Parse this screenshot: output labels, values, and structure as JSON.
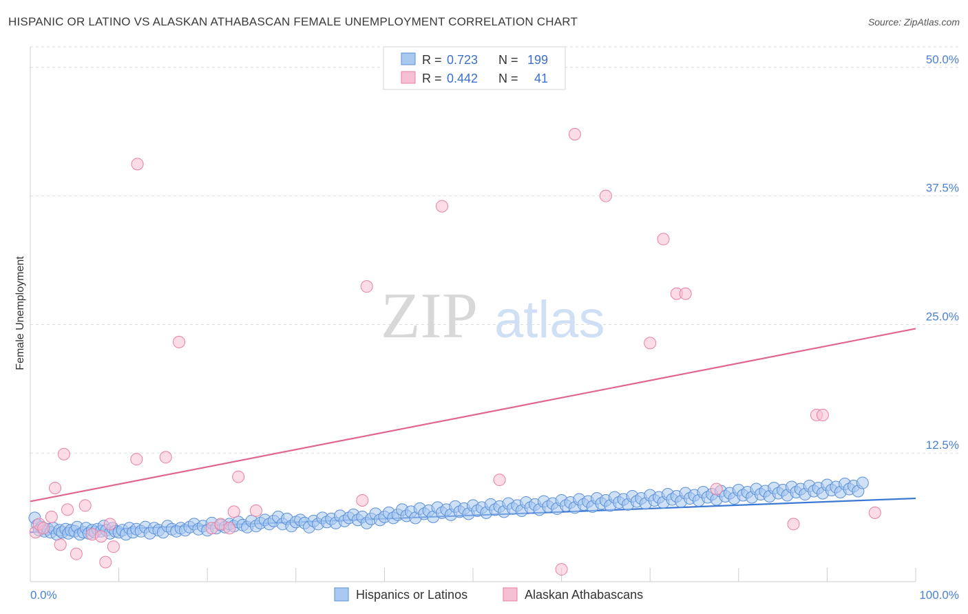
{
  "title": "HISPANIC OR LATINO VS ALASKAN ATHABASCAN FEMALE UNEMPLOYMENT CORRELATION CHART",
  "source": "Source: ZipAtlas.com",
  "watermark": {
    "zip": "ZIP",
    "atlas": "atlas"
  },
  "colors": {
    "blue_fill": "#a8c8f0",
    "blue_stroke": "#5b8fd8",
    "blue_line": "#3a78d4",
    "pink_fill": "#f7bfd3",
    "pink_stroke": "#e77fa3",
    "pink_line": "#e0658f",
    "axis_text": "#4a7fd4",
    "grid": "#dddddd"
  },
  "legend": {
    "series1": {
      "r_label": "R =",
      "r_value": "0.723",
      "n_label": "N =",
      "n_value": "199"
    },
    "series2": {
      "r_label": "R =",
      "r_value": "0.442",
      "n_label": "N =",
      "n_value": "41"
    }
  },
  "chart_data": {
    "type": "scatter",
    "title": "HISPANIC OR LATINO VS ALASKAN ATHABASCAN FEMALE UNEMPLOYMENT CORRELATION CHART",
    "xlabel": "",
    "ylabel": "Female Unemployment",
    "xlim": [
      0,
      100
    ],
    "ylim": [
      0,
      52
    ],
    "x_tick_labels": [
      "0.0%",
      "100.0%"
    ],
    "y_ticks": [
      12.5,
      25.0,
      37.5,
      50.0
    ],
    "y_tick_labels": [
      "12.5%",
      "25.0%",
      "37.5%",
      "50.0%"
    ],
    "grid": true,
    "series": [
      {
        "name": "Hispanics or Latinos",
        "trend": {
          "x": [
            0,
            100
          ],
          "y": [
            4.8,
            8.1
          ]
        },
        "points": [
          [
            0.5,
            6.2
          ],
          [
            0.8,
            5.5
          ],
          [
            1.0,
            5.0
          ],
          [
            1.3,
            5.3
          ],
          [
            1.6,
            4.9
          ],
          [
            2.0,
            5.1
          ],
          [
            2.3,
            4.8
          ],
          [
            2.6,
            5.2
          ],
          [
            3.0,
            4.6
          ],
          [
            3.3,
            5.0
          ],
          [
            3.6,
            4.8
          ],
          [
            4.0,
            5.1
          ],
          [
            4.3,
            4.7
          ],
          [
            4.6,
            5.0
          ],
          [
            5.0,
            4.9
          ],
          [
            5.3,
            5.3
          ],
          [
            5.6,
            4.6
          ],
          [
            6.0,
            4.8
          ],
          [
            6.3,
            5.2
          ],
          [
            6.6,
            4.7
          ],
          [
            7.0,
            5.0
          ],
          [
            7.3,
            4.8
          ],
          [
            7.6,
            5.1
          ],
          [
            8.0,
            4.9
          ],
          [
            8.3,
            5.4
          ],
          [
            8.6,
            5.0
          ],
          [
            9.0,
            4.7
          ],
          [
            9.3,
            5.2
          ],
          [
            9.6,
            4.9
          ],
          [
            10.0,
            4.8
          ],
          [
            10.4,
            5.0
          ],
          [
            10.8,
            4.6
          ],
          [
            11.2,
            5.2
          ],
          [
            11.6,
            4.8
          ],
          [
            12.0,
            5.1
          ],
          [
            12.5,
            4.9
          ],
          [
            13.0,
            5.3
          ],
          [
            13.5,
            4.7
          ],
          [
            14.0,
            5.2
          ],
          [
            14.5,
            5.0
          ],
          [
            15.0,
            4.8
          ],
          [
            15.5,
            5.4
          ],
          [
            16.0,
            5.1
          ],
          [
            16.5,
            4.9
          ],
          [
            17.0,
            5.2
          ],
          [
            17.5,
            5.0
          ],
          [
            18.0,
            5.3
          ],
          [
            18.5,
            5.6
          ],
          [
            19.0,
            5.1
          ],
          [
            19.5,
            5.4
          ],
          [
            20.0,
            5.0
          ],
          [
            20.5,
            5.7
          ],
          [
            21.0,
            5.2
          ],
          [
            21.5,
            5.5
          ],
          [
            22.0,
            5.3
          ],
          [
            22.5,
            5.6
          ],
          [
            23.0,
            5.4
          ],
          [
            23.5,
            5.8
          ],
          [
            24.0,
            5.5
          ],
          [
            24.5,
            5.3
          ],
          [
            25.0,
            5.9
          ],
          [
            25.5,
            5.4
          ],
          [
            26.0,
            5.7
          ],
          [
            26.5,
            6.0
          ],
          [
            27.0,
            5.6
          ],
          [
            27.5,
            5.9
          ],
          [
            28.0,
            6.3
          ],
          [
            28.5,
            5.6
          ],
          [
            29.0,
            6.1
          ],
          [
            29.5,
            5.4
          ],
          [
            30.0,
            5.8
          ],
          [
            30.5,
            6.0
          ],
          [
            31.0,
            5.7
          ],
          [
            31.5,
            5.3
          ],
          [
            32.0,
            5.9
          ],
          [
            32.5,
            5.6
          ],
          [
            33.0,
            6.2
          ],
          [
            33.5,
            5.8
          ],
          [
            34.0,
            6.1
          ],
          [
            34.5,
            5.7
          ],
          [
            35.0,
            6.4
          ],
          [
            35.5,
            5.9
          ],
          [
            36.0,
            6.2
          ],
          [
            36.5,
            6.5
          ],
          [
            37.0,
            6.0
          ],
          [
            37.5,
            6.3
          ],
          [
            38.0,
            5.7
          ],
          [
            38.5,
            6.1
          ],
          [
            39.0,
            6.6
          ],
          [
            39.5,
            6.0
          ],
          [
            40.0,
            6.3
          ],
          [
            40.5,
            6.7
          ],
          [
            41.0,
            6.2
          ],
          [
            41.5,
            6.5
          ],
          [
            42.0,
            7.0
          ],
          [
            42.5,
            6.4
          ],
          [
            43.0,
            6.8
          ],
          [
            43.5,
            6.2
          ],
          [
            44.0,
            7.1
          ],
          [
            44.5,
            6.6
          ],
          [
            45.0,
            6.9
          ],
          [
            45.5,
            6.3
          ],
          [
            46.0,
            7.2
          ],
          [
            46.5,
            6.7
          ],
          [
            47.0,
            7.0
          ],
          [
            47.5,
            6.5
          ],
          [
            48.0,
            7.3
          ],
          [
            48.5,
            6.8
          ],
          [
            49.0,
            7.1
          ],
          [
            49.5,
            6.6
          ],
          [
            50.0,
            7.4
          ],
          [
            50.5,
            6.9
          ],
          [
            51.0,
            7.2
          ],
          [
            51.5,
            6.7
          ],
          [
            52.0,
            7.5
          ],
          [
            52.5,
            7.0
          ],
          [
            53.0,
            7.3
          ],
          [
            53.5,
            6.8
          ],
          [
            54.0,
            7.6
          ],
          [
            54.5,
            7.1
          ],
          [
            55.0,
            7.4
          ],
          [
            55.5,
            6.9
          ],
          [
            56.0,
            7.7
          ],
          [
            56.5,
            7.2
          ],
          [
            57.0,
            7.5
          ],
          [
            57.5,
            7.0
          ],
          [
            58.0,
            7.8
          ],
          [
            58.5,
            7.3
          ],
          [
            59.0,
            7.6
          ],
          [
            59.5,
            7.1
          ],
          [
            60.0,
            7.9
          ],
          [
            60.5,
            7.4
          ],
          [
            61.0,
            7.7
          ],
          [
            61.5,
            7.2
          ],
          [
            62.0,
            8.0
          ],
          [
            62.5,
            7.5
          ],
          [
            63.0,
            7.8
          ],
          [
            63.5,
            7.3
          ],
          [
            64.0,
            8.1
          ],
          [
            64.5,
            7.6
          ],
          [
            65.0,
            7.9
          ],
          [
            65.5,
            7.4
          ],
          [
            66.0,
            8.2
          ],
          [
            66.5,
            7.7
          ],
          [
            67.0,
            8.0
          ],
          [
            67.5,
            7.5
          ],
          [
            68.0,
            8.3
          ],
          [
            68.5,
            7.8
          ],
          [
            69.0,
            8.1
          ],
          [
            69.5,
            7.6
          ],
          [
            70.0,
            8.4
          ],
          [
            70.5,
            7.9
          ],
          [
            71.0,
            8.2
          ],
          [
            71.5,
            7.7
          ],
          [
            72.0,
            8.5
          ],
          [
            72.5,
            8.0
          ],
          [
            73.0,
            8.3
          ],
          [
            73.5,
            7.8
          ],
          [
            74.0,
            8.6
          ],
          [
            74.5,
            8.1
          ],
          [
            75.0,
            8.4
          ],
          [
            75.5,
            7.9
          ],
          [
            76.0,
            8.7
          ],
          [
            76.5,
            8.2
          ],
          [
            77.0,
            8.5
          ],
          [
            77.5,
            8.0
          ],
          [
            78.0,
            8.8
          ],
          [
            78.5,
            8.3
          ],
          [
            79.0,
            8.6
          ],
          [
            79.5,
            8.1
          ],
          [
            80.0,
            8.9
          ],
          [
            80.5,
            8.4
          ],
          [
            81.0,
            8.7
          ],
          [
            81.5,
            8.2
          ],
          [
            82.0,
            9.0
          ],
          [
            82.5,
            8.5
          ],
          [
            83.0,
            8.8
          ],
          [
            83.5,
            8.3
          ],
          [
            84.0,
            9.1
          ],
          [
            84.5,
            8.6
          ],
          [
            85.0,
            8.9
          ],
          [
            85.5,
            8.4
          ],
          [
            86.0,
            9.2
          ],
          [
            86.5,
            8.7
          ],
          [
            87.0,
            9.0
          ],
          [
            87.5,
            8.5
          ],
          [
            88.0,
            9.3
          ],
          [
            88.5,
            8.8
          ],
          [
            89.0,
            9.1
          ],
          [
            89.5,
            8.6
          ],
          [
            90.0,
            9.4
          ],
          [
            90.5,
            8.9
          ],
          [
            91.0,
            9.2
          ],
          [
            91.5,
            8.7
          ],
          [
            92.0,
            9.5
          ],
          [
            92.5,
            9.0
          ],
          [
            93.0,
            9.3
          ],
          [
            93.5,
            8.8
          ],
          [
            94.0,
            9.6
          ]
        ]
      },
      {
        "name": "Alaskan Athabascans",
        "trend": {
          "x": [
            0,
            100
          ],
          "y": [
            7.8,
            24.6
          ]
        },
        "points": [
          [
            0.6,
            4.8
          ],
          [
            1.0,
            5.6
          ],
          [
            1.5,
            5.2
          ],
          [
            2.4,
            6.3
          ],
          [
            2.8,
            9.1
          ],
          [
            3.4,
            3.6
          ],
          [
            3.8,
            12.4
          ],
          [
            4.2,
            7.0
          ],
          [
            5.2,
            2.7
          ],
          [
            6.2,
            7.4
          ],
          [
            7.0,
            4.6
          ],
          [
            8.0,
            4.4
          ],
          [
            8.5,
            1.9
          ],
          [
            9.0,
            5.6
          ],
          [
            9.4,
            3.4
          ],
          [
            12.0,
            11.9
          ],
          [
            12.1,
            40.6
          ],
          [
            15.3,
            12.1
          ],
          [
            16.8,
            23.3
          ],
          [
            20.5,
            5.2
          ],
          [
            21.5,
            5.6
          ],
          [
            22.5,
            5.2
          ],
          [
            23.0,
            6.8
          ],
          [
            23.5,
            10.2
          ],
          [
            25.5,
            6.9
          ],
          [
            37.5,
            7.9
          ],
          [
            38.0,
            28.7
          ],
          [
            46.5,
            36.5
          ],
          [
            53.0,
            9.9
          ],
          [
            60.0,
            1.2
          ],
          [
            61.5,
            43.5
          ],
          [
            65.0,
            37.5
          ],
          [
            70.0,
            23.2
          ],
          [
            71.5,
            33.3
          ],
          [
            73.0,
            28.0
          ],
          [
            74.0,
            28.0
          ],
          [
            77.5,
            9.0
          ],
          [
            86.2,
            5.6
          ],
          [
            88.8,
            16.2
          ],
          [
            89.5,
            16.2
          ],
          [
            95.4,
            6.7
          ]
        ]
      }
    ]
  },
  "bottom_legend": {
    "series1": "Hispanics or Latinos",
    "series2": "Alaskan Athabascans"
  }
}
